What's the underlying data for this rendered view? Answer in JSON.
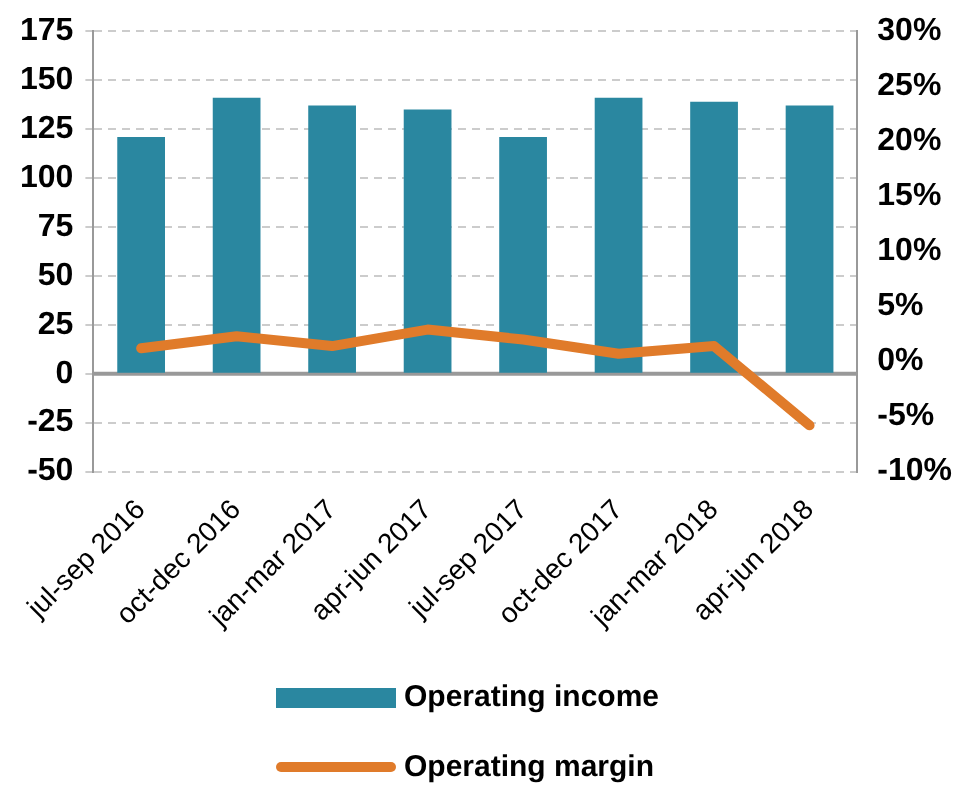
{
  "chart_data": {
    "type": "bar",
    "categories": [
      "jul-sep 2016",
      "oct-dec 2016",
      "jan-mar 2017",
      "apr-jun 2017",
      "jul-sep 2017",
      "oct-dec 2017",
      "jan-mar 2018",
      "apr-jun 2018"
    ],
    "series": [
      {
        "name": "Operating income",
        "color": "#2a87a0",
        "values": [
          121,
          141,
          137,
          135,
          121,
          141,
          139,
          137
        ]
      },
      {
        "name": "Operating margin",
        "type": "line",
        "axis": "y2",
        "color": "#e07b2a",
        "values": [
          1.2,
          2.3,
          1.4,
          2.9,
          2.0,
          0.7,
          1.4,
          -5.8
        ]
      }
    ],
    "ylim": [
      -50,
      175
    ],
    "yticks": [
      -50,
      -25,
      0,
      25,
      50,
      75,
      100,
      125,
      150,
      175
    ],
    "y2lim": [
      -10,
      30
    ],
    "y2ticks": [
      {
        "value": -10,
        "label": "-10%"
      },
      {
        "value": -5,
        "label": "-5%"
      },
      {
        "value": 0,
        "label": "0%"
      },
      {
        "value": 5,
        "label": "5%"
      },
      {
        "value": 10,
        "label": "10%"
      },
      {
        "value": 15,
        "label": "15%"
      },
      {
        "value": 20,
        "label": "20%"
      },
      {
        "value": 25,
        "label": "25%"
      },
      {
        "value": 30,
        "label": "30%"
      }
    ],
    "ref_lines": [
      {
        "axis": "y",
        "value": 0,
        "color": "#999999"
      }
    ],
    "grid": "y",
    "legend": "bottom",
    "marker": "none",
    "line_style": "solid"
  }
}
